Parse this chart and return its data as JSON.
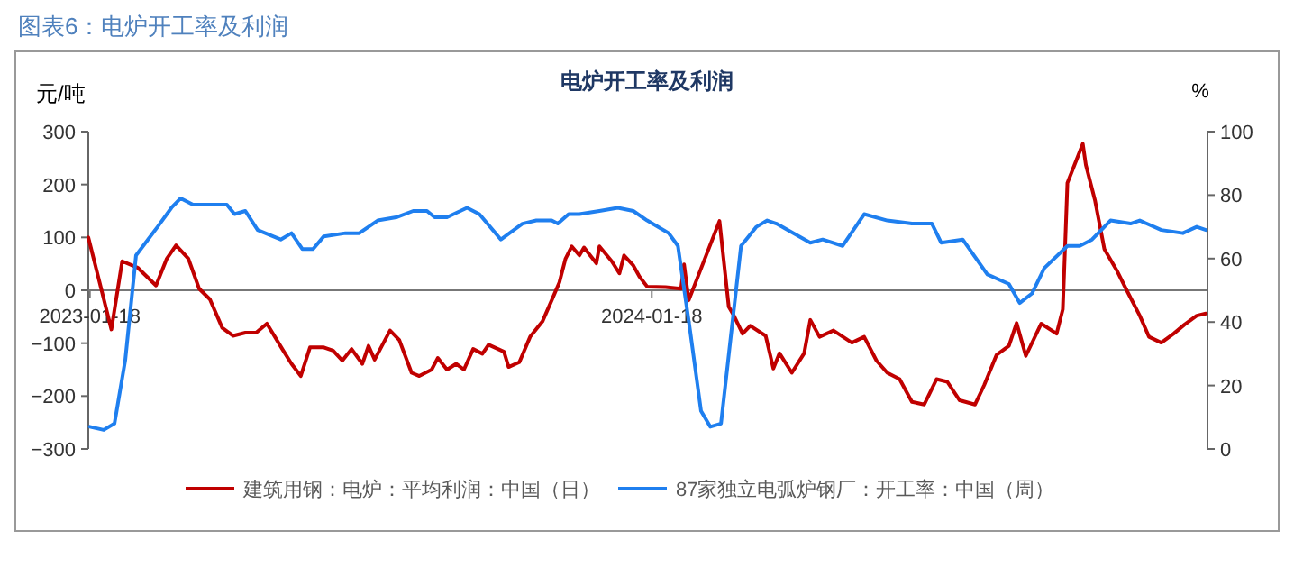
{
  "chart_data": {
    "type": "line",
    "title": "图表6：电炉开工率及利润",
    "subtitle": "电炉开工率及利润",
    "ylabel": "元/吨",
    "y2label": "%",
    "xlim": [
      "2023-01-17",
      "2025-01-13"
    ],
    "xticks": [
      "2023-01-18",
      "2024-01-18"
    ],
    "ylim": [
      -300,
      300
    ],
    "yticks": [
      -300,
      -200,
      -100,
      0,
      100,
      200,
      300
    ],
    "y2lim": [
      0,
      100
    ],
    "y2ticks": [
      0,
      20,
      40,
      60,
      80,
      100
    ],
    "legend": "bottom",
    "series": [
      {
        "name": "建筑用钢：电炉：平均利润：中国（日）",
        "color": "#c00000",
        "x": [
          "2023-01-17",
          "2023-02-01",
          "2023-02-08",
          "2023-02-18",
          "2023-03-02",
          "2023-03-09",
          "2023-03-15",
          "2023-03-23",
          "2023-03-30",
          "2023-04-06",
          "2023-04-14",
          "2023-04-21",
          "2023-04-29",
          "2023-05-06",
          "2023-05-13",
          "2023-05-23",
          "2023-05-29",
          "2023-06-04",
          "2023-06-10",
          "2023-06-19",
          "2023-06-25",
          "2023-07-01",
          "2023-07-07",
          "2023-07-14",
          "2023-07-18",
          "2023-07-22",
          "2023-08-01",
          "2023-08-07",
          "2023-08-15",
          "2023-08-20",
          "2023-08-28",
          "2023-09-01",
          "2023-09-07",
          "2023-09-13",
          "2023-09-18",
          "2023-09-24",
          "2023-09-30",
          "2023-10-04",
          "2023-10-14",
          "2023-10-17",
          "2023-10-24",
          "2023-10-31",
          "2023-11-08",
          "2023-11-14",
          "2023-11-19",
          "2023-11-23",
          "2023-11-27",
          "2023-12-02",
          "2023-12-05",
          "2023-12-13",
          "2023-12-15",
          "2023-12-23",
          "2023-12-28",
          "2023-12-31",
          "2024-01-06",
          "2024-01-10",
          "2024-01-15",
          "2024-01-27",
          "2024-02-06",
          "2024-02-08",
          "2024-02-11",
          "2024-03-02",
          "2024-03-08",
          "2024-03-11",
          "2024-03-17",
          "2024-03-22",
          "2024-04-01",
          "2024-04-06",
          "2024-04-10",
          "2024-04-18",
          "2024-04-26",
          "2024-04-30",
          "2024-05-06",
          "2024-05-15",
          "2024-05-27",
          "2024-06-04",
          "2024-06-12",
          "2024-06-19",
          "2024-06-27",
          "2024-07-05",
          "2024-07-13",
          "2024-07-21",
          "2024-07-28",
          "2024-08-05",
          "2024-08-15",
          "2024-08-21",
          "2024-08-29",
          "2024-09-06",
          "2024-09-11",
          "2024-09-17",
          "2024-09-27",
          "2024-10-07",
          "2024-10-11",
          "2024-10-14",
          "2024-10-24",
          "2024-10-26",
          "2024-11-01",
          "2024-11-07",
          "2024-11-15",
          "2024-11-21",
          "2024-11-30",
          "2024-12-06",
          "2024-12-14",
          "2024-12-22",
          "2024-12-29",
          "2025-01-06",
          "2025-01-12"
        ],
        "values": [
          100,
          -74,
          55,
          43,
          9,
          60,
          85,
          60,
          3,
          -17,
          -71,
          -86,
          -80,
          -80,
          -63,
          -111,
          -139,
          -162,
          -108,
          -108,
          -114,
          -133,
          -111,
          -139,
          -105,
          -131,
          -76,
          -94,
          -156,
          -162,
          -150,
          -128,
          -150,
          -139,
          -150,
          -111,
          -120,
          -103,
          -116,
          -145,
          -136,
          -88,
          -59,
          -19,
          15,
          60,
          83,
          66,
          81,
          51,
          83,
          55,
          32,
          66,
          47,
          26,
          7,
          6,
          3,
          49,
          -19,
          131,
          -31,
          -46,
          -82,
          -67,
          -86,
          -148,
          -119,
          -156,
          -119,
          -56,
          -88,
          -76,
          -99,
          -88,
          -133,
          -156,
          -168,
          -211,
          -216,
          -168,
          -173,
          -208,
          -216,
          -179,
          -122,
          -105,
          -62,
          -124,
          -63,
          -82,
          -36,
          203,
          277,
          237,
          169,
          78,
          38,
          3,
          -48,
          -88,
          -99,
          -82,
          -65,
          -48,
          -44
        ]
      },
      {
        "name": "87家独立电弧炉钢厂：开工率：中国（周）",
        "color": "#1f7fef",
        "axis": "y2",
        "x": [
          "2023-01-18",
          "2023-01-27",
          "2023-02-03",
          "2023-02-10",
          "2023-02-17",
          "2023-03-03",
          "2023-03-12",
          "2023-03-18",
          "2023-03-26",
          "2023-04-06",
          "2023-04-17",
          "2023-04-22",
          "2023-04-29",
          "2023-05-07",
          "2023-05-22",
          "2023-05-29",
          "2023-06-05",
          "2023-06-12",
          "2023-06-19",
          "2023-07-03",
          "2023-07-12",
          "2023-07-24",
          "2023-08-05",
          "2023-08-16",
          "2023-08-25",
          "2023-08-30",
          "2023-09-07",
          "2023-09-20",
          "2023-09-28",
          "2023-10-12",
          "2023-10-26",
          "2023-11-04",
          "2023-11-14",
          "2023-11-18",
          "2023-11-25",
          "2023-12-02",
          "2023-12-15",
          "2023-12-27",
          "2024-01-06",
          "2024-01-15",
          "2024-01-29",
          "2024-02-04",
          "2024-02-12",
          "2024-02-19",
          "2024-02-25",
          "2024-03-03",
          "2024-03-16",
          "2024-03-26",
          "2024-04-02",
          "2024-04-08",
          "2024-04-30",
          "2024-05-08",
          "2024-05-21",
          "2024-06-04",
          "2024-06-19",
          "2024-07-05",
          "2024-07-18",
          "2024-07-24",
          "2024-08-07",
          "2024-08-23",
          "2024-09-06",
          "2024-09-13",
          "2024-09-21",
          "2024-09-29",
          "2024-10-14",
          "2024-10-22",
          "2024-10-30",
          "2024-11-11",
          "2024-11-24",
          "2024-11-30",
          "2024-12-14",
          "2024-12-28",
          "2025-01-06",
          "2025-01-12"
        ],
        "values": [
          7,
          6,
          8,
          28,
          61,
          70,
          76,
          79,
          77,
          77,
          77,
          74,
          75,
          69,
          66,
          68,
          63,
          63,
          67,
          68,
          68,
          72,
          73,
          75,
          75,
          73,
          73,
          76,
          74,
          66,
          71,
          72,
          72,
          71,
          74,
          74,
          75,
          76,
          75,
          72,
          68,
          64,
          37,
          12,
          7,
          8,
          64,
          70,
          72,
          71,
          65,
          66,
          64,
          74,
          72,
          71,
          71,
          65,
          66,
          55,
          52,
          46,
          49,
          57,
          64,
          64,
          66,
          72,
          71,
          72,
          69,
          68,
          70,
          69
        ]
      }
    ]
  }
}
